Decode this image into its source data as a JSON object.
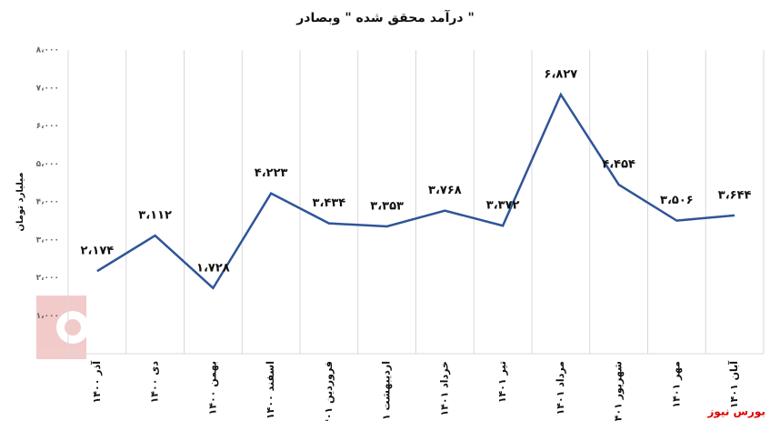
{
  "chart_data": {
    "type": "line",
    "title": "درآمد محقق شده \" وبصادر \"",
    "y_label": "میلیارد تومان",
    "source": "بورس نیوز",
    "categories": [
      "آذر ۱۴۰۰",
      "دی ۱۴۰۰",
      "بهمن ۱۴۰۰",
      "اسفند ۱۴۰۰",
      "فروردین ۱۴۰۱",
      "اردیبهشت ۱۴۰۱",
      "خرداد ۱۴۰۱",
      "تیر ۱۴۰۱",
      "مرداد ۱۴۰۱",
      "شهریور ۱۴۰۱",
      "مهر ۱۴۰۱",
      "آبان ۱۴۰۱"
    ],
    "series": [
      {
        "name": "درآمد",
        "color": "#2f5597",
        "values": [
          2174,
          3112,
          1728,
          4223,
          3434,
          3353,
          3768,
          3372,
          6827,
          4454,
          3506,
          3644
        ],
        "value_labels": [
          "۲،۱۷۴",
          "۳،۱۱۲",
          "۱،۷۲۸",
          "۴،۲۲۳",
          "۳،۴۳۴",
          "۳،۳۵۳",
          "۳،۷۶۸",
          "۳،۳۷۲",
          "۶،۸۲۷",
          "۴،۴۵۴",
          "۳،۵۰۶",
          "۳،۶۴۴"
        ]
      }
    ],
    "ylim": [
      0,
      8000
    ],
    "yticks": [
      {
        "value": 1000,
        "label": "۱،۰۰۰"
      },
      {
        "value": 2000,
        "label": "۲،۰۰۰"
      },
      {
        "value": 3000,
        "label": "۳،۰۰۰"
      },
      {
        "value": 4000,
        "label": "۴،۰۰۰"
      },
      {
        "value": 5000,
        "label": "۵،۰۰۰"
      },
      {
        "value": 6000,
        "label": "۶،۰۰۰"
      },
      {
        "value": 7000,
        "label": "۷،۰۰۰"
      },
      {
        "value": 8000,
        "label": "۸،۰۰۰"
      }
    ],
    "grid": "x"
  }
}
